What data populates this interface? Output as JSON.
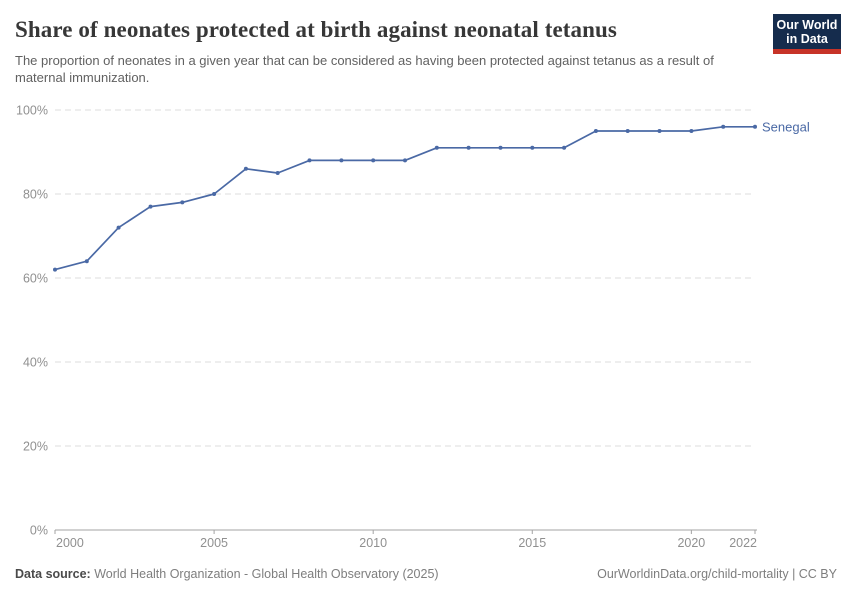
{
  "header": {
    "title": "Share of neonates protected at birth against neonatal tetanus",
    "subtitle": "The proportion of neonates in a given year that can be considered as having been protected against tetanus as a result of maternal immunization.",
    "logo": {
      "line1": "Our World",
      "line2": "in Data",
      "bg_color": "#152c4d",
      "bar_color": "#c73328"
    }
  },
  "chart_data": {
    "type": "line",
    "title": "Share of neonates protected at birth against neonatal tetanus",
    "xlabel": "",
    "ylabel": "",
    "x": [
      2000,
      2001,
      2002,
      2003,
      2004,
      2005,
      2006,
      2007,
      2008,
      2009,
      2010,
      2011,
      2012,
      2013,
      2014,
      2015,
      2016,
      2017,
      2018,
      2019,
      2020,
      2021,
      2022
    ],
    "series": [
      {
        "name": "Senegal",
        "color": "#4a69a5",
        "values": [
          62,
          64,
          72,
          77,
          78,
          80,
          86,
          85,
          88,
          88,
          88,
          88,
          91,
          91,
          91,
          91,
          91,
          95,
          95,
          95,
          95,
          96,
          96
        ]
      }
    ],
    "xlim": [
      2000,
      2022
    ],
    "ylim": [
      0,
      100
    ],
    "x_ticks": [
      2000,
      2005,
      2010,
      2015,
      2020,
      2022
    ],
    "y_ticks": [
      0,
      20,
      40,
      60,
      80,
      100
    ],
    "y_tick_suffix": "%",
    "grid": "horizontal-dashed",
    "legend_position": "end-of-line-label",
    "colors": {
      "grid": "#dcdcdc",
      "axis": "#a3a3a3",
      "tick_label": "#909090"
    }
  },
  "footer": {
    "datasource_label": "Data source:",
    "datasource_text": " World Health Organization - Global Health Observatory (2025)",
    "license_text": "OurWorldinData.org/child-mortality | CC BY"
  }
}
